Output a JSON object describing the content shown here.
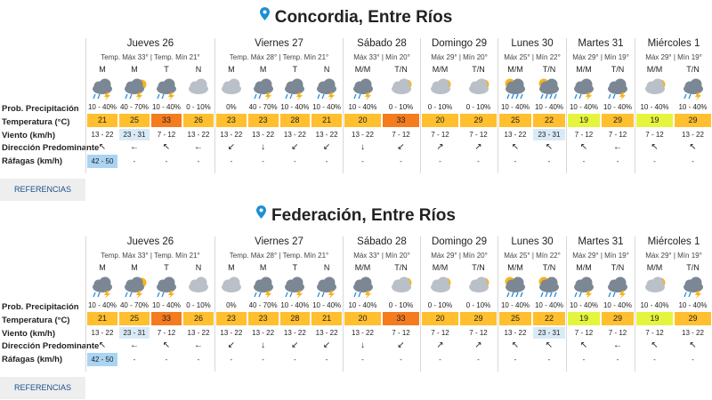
{
  "colors": {
    "t_orange": "#ffbf2e",
    "t_red": "#f57b1f",
    "t_yellow": "#ffd84d",
    "t_lime": "#e5f53d",
    "pin": "#1d8fd3",
    "wind_highlight": "#d9eaf7",
    "gust_highlight": "#a9d4f2"
  },
  "row_labels": {
    "precip": "Prob. Precipitación",
    "temp": "Temperatura (°C)",
    "wind": "Viento (km/h)",
    "direction": "Dirección Predominante",
    "gusts": "Ráfagas (km/h)"
  },
  "references_label": "REFERENCIAS",
  "sections": [
    {
      "title": "Concordia, Entre Ríos",
      "days": [
        {
          "name": "Jueves 26",
          "temps": "Temp. Máx 33° | Temp. Mín 21°",
          "cols": [
            {
              "period": "M",
              "icon": "storm-cloud-icon",
              "prob": "10 - 40%",
              "temp": "21",
              "temp_color": "t_orange",
              "wind": "13 - 22",
              "dir": "↖",
              "gust": "42 - 50"
            },
            {
              "period": "M",
              "icon": "storm-sun-icon",
              "prob": "40 - 70%",
              "temp": "25",
              "temp_color": "t_orange",
              "wind": "23 - 31",
              "wind_hl": true,
              "dir": "←",
              "gust": "-"
            },
            {
              "period": "T",
              "icon": "storm-cloud-icon",
              "prob": "10 - 40%",
              "temp": "33",
              "temp_color": "t_red",
              "wind": "7 - 12",
              "dir": "↖",
              "gust": "-"
            },
            {
              "period": "N",
              "icon": "cloud-icon",
              "prob": "0 - 10%",
              "temp": "26",
              "temp_color": "t_orange",
              "wind": "13 - 22",
              "dir": "←",
              "gust": "-"
            }
          ]
        },
        {
          "name": "Viernes 27",
          "temps": "Temp. Máx 28° | Temp. Mín 21°",
          "cols": [
            {
              "period": "M",
              "icon": "cloud-icon",
              "prob": "0%",
              "temp": "23",
              "temp_color": "t_orange",
              "wind": "13 - 22",
              "dir": "↙",
              "gust": "-"
            },
            {
              "period": "M",
              "icon": "storm-cloud-icon",
              "prob": "40 - 70%",
              "temp": "23",
              "temp_color": "t_orange",
              "wind": "13 - 22",
              "dir": "↓",
              "gust": "-"
            },
            {
              "period": "T",
              "icon": "storm-cloud-icon",
              "prob": "10 - 40%",
              "temp": "28",
              "temp_color": "t_orange",
              "wind": "13 - 22",
              "dir": "↙",
              "gust": "-"
            },
            {
              "period": "N",
              "icon": "storm-cloud-icon",
              "prob": "10 - 40%",
              "temp": "21",
              "temp_color": "t_orange",
              "wind": "13 - 22",
              "dir": "↙",
              "gust": "-"
            }
          ]
        },
        {
          "name": "Sábado 28",
          "temps": "Máx 33° | Mín 20°",
          "cols": [
            {
              "period": "M/M",
              "icon": "storm-cloud-icon",
              "prob": "10 - 40%",
              "temp": "20",
              "temp_color": "t_orange",
              "wind": "13 - 22",
              "dir": "↓",
              "gust": "-"
            },
            {
              "period": "T/N",
              "icon": "partly-cloudy-icon",
              "prob": "0 - 10%",
              "temp": "33",
              "temp_color": "t_red",
              "wind": "7 - 12",
              "dir": "↙",
              "gust": "-"
            }
          ]
        },
        {
          "name": "Domingo 29",
          "temps": "Máx 29° | Mín 20°",
          "cols": [
            {
              "period": "M/M",
              "icon": "partly-cloudy-icon",
              "prob": "0 - 10%",
              "temp": "20",
              "temp_color": "t_orange",
              "wind": "7 - 12",
              "dir": "↗",
              "gust": "-"
            },
            {
              "period": "T/N",
              "icon": "partly-cloudy-icon",
              "prob": "0 - 10%",
              "temp": "29",
              "temp_color": "t_orange",
              "wind": "7 - 12",
              "dir": "↗",
              "gust": "-"
            }
          ]
        },
        {
          "name": "Lunes 30",
          "temps": "Máx 25° | Mín 22°",
          "cols": [
            {
              "period": "M/M",
              "icon": "rain-sun-icon",
              "prob": "10 - 40%",
              "temp": "25",
              "temp_color": "t_orange",
              "wind": "13 - 22",
              "dir": "↖",
              "gust": "-"
            },
            {
              "period": "T/N",
              "icon": "rain-sun-icon",
              "prob": "10 - 40%",
              "temp": "22",
              "temp_color": "t_orange",
              "wind": "23 - 31",
              "wind_hl": true,
              "dir": "↖",
              "gust": "-"
            }
          ]
        },
        {
          "name": "Martes 31",
          "temps": "Máx 29° | Mín 19°",
          "cols": [
            {
              "period": "M/M",
              "icon": "storm-cloud-icon",
              "prob": "10 - 40%",
              "temp": "19",
              "temp_color": "t_lime",
              "wind": "7 - 12",
              "dir": "↖",
              "gust": "-"
            },
            {
              "period": "T/N",
              "icon": "storm-cloud-icon",
              "prob": "10 - 40%",
              "temp": "29",
              "temp_color": "t_orange",
              "wind": "7 - 12",
              "dir": "←",
              "gust": "-"
            }
          ]
        },
        {
          "name": "Miércoles 1",
          "temps": "Máx 29° | Mín 19°",
          "cols": [
            {
              "period": "M/M",
              "icon": "partly-cloudy-icon",
              "prob": "10 - 40%",
              "temp": "19",
              "temp_color": "t_lime",
              "wind": "7 - 12",
              "dir": "↖",
              "gust": "-"
            },
            {
              "period": "T/N",
              "icon": "storm-cloud-icon",
              "prob": "10 - 40%",
              "temp": "29",
              "temp_color": "t_orange",
              "wind": "13 - 22",
              "dir": "↖",
              "gust": "-"
            }
          ]
        }
      ]
    },
    {
      "title": "Federación, Entre Ríos",
      "days": [
        {
          "name": "Jueves 26",
          "temps": "Temp. Máx 33° | Temp. Mín 21°",
          "cols": [
            {
              "period": "M",
              "icon": "storm-cloud-icon",
              "prob": "10 - 40%",
              "temp": "21",
              "temp_color": "t_orange",
              "wind": "13 - 22",
              "dir": "↖",
              "gust": "42 - 50"
            },
            {
              "period": "M",
              "icon": "storm-sun-icon",
              "prob": "40 - 70%",
              "temp": "25",
              "temp_color": "t_orange",
              "wind": "23 - 31",
              "wind_hl": true,
              "dir": "←",
              "gust": "-"
            },
            {
              "period": "T",
              "icon": "storm-cloud-icon",
              "prob": "10 - 40%",
              "temp": "33",
              "temp_color": "t_red",
              "wind": "7 - 12",
              "dir": "↖",
              "gust": "-"
            },
            {
              "period": "N",
              "icon": "cloud-icon",
              "prob": "0 - 10%",
              "temp": "26",
              "temp_color": "t_orange",
              "wind": "13 - 22",
              "dir": "←",
              "gust": "-"
            }
          ]
        },
        {
          "name": "Viernes 27",
          "temps": "Temp. Máx 28° | Temp. Mín 21°",
          "cols": [
            {
              "period": "M",
              "icon": "cloud-icon",
              "prob": "0%",
              "temp": "23",
              "temp_color": "t_orange",
              "wind": "13 - 22",
              "dir": "↙",
              "gust": "-"
            },
            {
              "period": "M",
              "icon": "storm-cloud-icon",
              "prob": "40 - 70%",
              "temp": "23",
              "temp_color": "t_orange",
              "wind": "13 - 22",
              "dir": "↓",
              "gust": "-"
            },
            {
              "period": "T",
              "icon": "storm-cloud-icon",
              "prob": "10 - 40%",
              "temp": "28",
              "temp_color": "t_orange",
              "wind": "13 - 22",
              "dir": "↙",
              "gust": "-"
            },
            {
              "period": "N",
              "icon": "storm-cloud-icon",
              "prob": "10 - 40%",
              "temp": "21",
              "temp_color": "t_orange",
              "wind": "13 - 22",
              "dir": "↙",
              "gust": "-"
            }
          ]
        },
        {
          "name": "Sábado 28",
          "temps": "Máx 33° | Mín 20°",
          "cols": [
            {
              "period": "M/M",
              "icon": "storm-cloud-icon",
              "prob": "10 - 40%",
              "temp": "20",
              "temp_color": "t_orange",
              "wind": "13 - 22",
              "dir": "↓",
              "gust": "-"
            },
            {
              "period": "T/N",
              "icon": "partly-cloudy-icon",
              "prob": "0 - 10%",
              "temp": "33",
              "temp_color": "t_red",
              "wind": "7 - 12",
              "dir": "↙",
              "gust": "-"
            }
          ]
        },
        {
          "name": "Domingo 29",
          "temps": "Máx 29° | Mín 20°",
          "cols": [
            {
              "period": "M/M",
              "icon": "partly-cloudy-icon",
              "prob": "0 - 10%",
              "temp": "20",
              "temp_color": "t_orange",
              "wind": "7 - 12",
              "dir": "↗",
              "gust": "-"
            },
            {
              "period": "T/N",
              "icon": "partly-cloudy-icon",
              "prob": "0 - 10%",
              "temp": "29",
              "temp_color": "t_orange",
              "wind": "7 - 12",
              "dir": "↗",
              "gust": "-"
            }
          ]
        },
        {
          "name": "Lunes 30",
          "temps": "Máx 25° | Mín 22°",
          "cols": [
            {
              "period": "M/M",
              "icon": "rain-sun-icon",
              "prob": "10 - 40%",
              "temp": "25",
              "temp_color": "t_orange",
              "wind": "13 - 22",
              "dir": "↖",
              "gust": "-"
            },
            {
              "period": "T/N",
              "icon": "rain-sun-icon",
              "prob": "10 - 40%",
              "temp": "22",
              "temp_color": "t_orange",
              "wind": "23 - 31",
              "wind_hl": true,
              "dir": "↖",
              "gust": "-"
            }
          ]
        },
        {
          "name": "Martes 31",
          "temps": "Máx 29° | Mín 19°",
          "cols": [
            {
              "period": "M/M",
              "icon": "storm-cloud-icon",
              "prob": "10 - 40%",
              "temp": "19",
              "temp_color": "t_lime",
              "wind": "7 - 12",
              "dir": "↖",
              "gust": "-"
            },
            {
              "period": "T/N",
              "icon": "storm-cloud-icon",
              "prob": "10 - 40%",
              "temp": "29",
              "temp_color": "t_orange",
              "wind": "7 - 12",
              "dir": "←",
              "gust": "-"
            }
          ]
        },
        {
          "name": "Miércoles 1",
          "temps": "Máx 29° | Mín 19°",
          "cols": [
            {
              "period": "M/M",
              "icon": "partly-cloudy-icon",
              "prob": "10 - 40%",
              "temp": "19",
              "temp_color": "t_lime",
              "wind": "7 - 12",
              "dir": "↖",
              "gust": "-"
            },
            {
              "period": "T/N",
              "icon": "storm-cloud-icon",
              "prob": "10 - 40%",
              "temp": "29",
              "temp_color": "t_orange",
              "wind": "13 - 22",
              "dir": "↖",
              "gust": "-"
            }
          ]
        }
      ]
    }
  ]
}
